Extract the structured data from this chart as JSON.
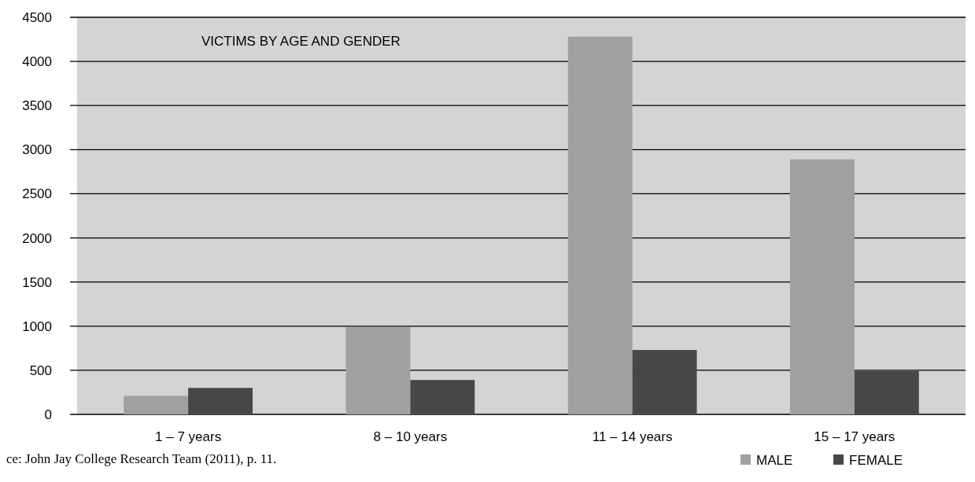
{
  "chart_data": {
    "type": "bar",
    "title": "VICTIMS BY AGE AND GENDER",
    "categories": [
      "1 – 7 years",
      "8 – 10 years",
      "11 – 14 years",
      "15 – 17 years"
    ],
    "series": [
      {
        "name": "MALE",
        "color": "#a0a0a0",
        "values": [
          210,
          990,
          4280,
          2890
        ]
      },
      {
        "name": "FEMALE",
        "color": "#474747",
        "values": [
          300,
          390,
          730,
          490
        ]
      }
    ],
    "ylim": [
      0,
      4500
    ],
    "yticks": [
      0,
      500,
      1000,
      1500,
      2000,
      2500,
      3000,
      3500,
      4000,
      4500
    ],
    "grid": "y",
    "legend": "bottom right",
    "annotations": [
      "ce: John Jay College Research Team (2011), p. 11."
    ]
  }
}
